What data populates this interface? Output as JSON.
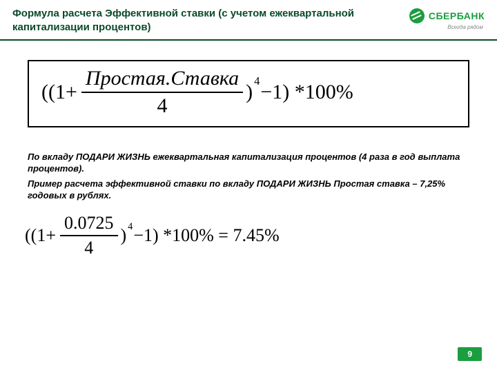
{
  "header": {
    "title": "Формула расчета Эффективной ставки (с учетом ежеквартальной капитализации процентов)",
    "logo_text": "СБЕРБАНК",
    "logo_tagline": "Всегда рядом"
  },
  "formula_general": {
    "open": "((1",
    "plus": "+",
    "numerator": "Простая.Ставка",
    "denominator": "4",
    "close_paren": ")",
    "exponent": "4",
    "tail": " −1) *100%"
  },
  "notes": {
    "line1": "По вкладу ПОДАРИ ЖИЗНЬ ежеквартальная капитализация процентов (4 раза в год выплата процентов).",
    "line2": "Пример расчета эффективной ставки по вкладу ПОДАРИ ЖИЗНЬ Простая ставка – 7,25% годовых в рублях."
  },
  "formula_example": {
    "open": "((1",
    "plus": "+",
    "numerator": "0.0725",
    "denominator": "4",
    "close_paren": ")",
    "exponent": "4",
    "tail": " −1) *100% = 7.45%"
  },
  "page_number": "9",
  "colors": {
    "brand_green": "#1a9e3f",
    "title_green": "#0a4a2a",
    "black": "#000000",
    "white": "#ffffff"
  }
}
